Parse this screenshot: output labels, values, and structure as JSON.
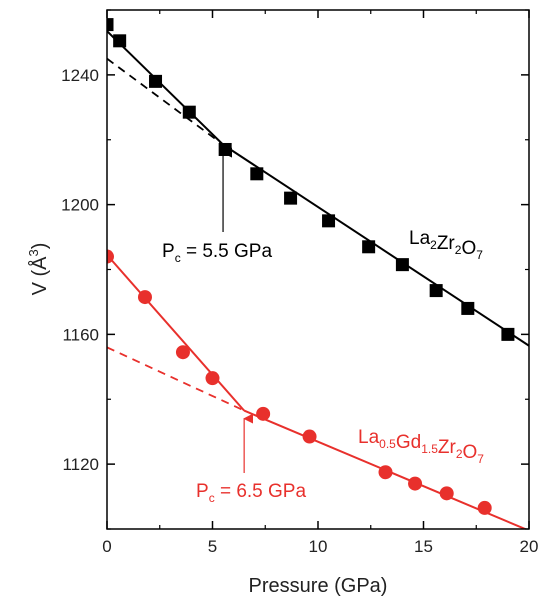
{
  "chart_data": {
    "type": "scatter",
    "xlabel": "Pressure (GPa)",
    "ylabel": "V (Å",
    "ylabel_sup": "3",
    "ylabel_close": ")",
    "xlim": [
      0,
      20
    ],
    "ylim": [
      1100,
      1260
    ],
    "xticks": [
      "0",
      "5",
      "10",
      "15",
      "20"
    ],
    "yticks": [
      "1120",
      "1160",
      "1200",
      "1240"
    ],
    "grid": false,
    "colors": {
      "black": "#000000",
      "red": "#e8302c"
    },
    "series": [
      {
        "name_parts": [
          {
            "text": "La",
            "sub": "2"
          },
          {
            "text": "Zr",
            "sub": "2"
          },
          {
            "text": "O",
            "sub": "7"
          }
        ],
        "color": "#000000",
        "marker": "square",
        "x": [
          0.0,
          0.6,
          2.3,
          3.9,
          5.6,
          7.1,
          8.7,
          10.5,
          12.4,
          14.0,
          15.6,
          17.1,
          19.0
        ],
        "y": [
          1255.5,
          1250.5,
          1238.0,
          1228.5,
          1217.0,
          1209.5,
          1202.0,
          1195.0,
          1187.0,
          1181.5,
          1173.5,
          1168.0,
          1160.0
        ],
        "fit_low": {
          "x": [
            0.0,
            5.5
          ],
          "y": [
            1253.5,
            1218.5
          ]
        },
        "fit_high": {
          "x": [
            5.5,
            20.0
          ],
          "y": [
            1218.5,
            1156.5
          ]
        },
        "extrapolation": {
          "x": [
            0.0,
            5.5
          ],
          "y": [
            1245.0,
            1218.5
          ]
        },
        "pc": {
          "prefix": "P",
          "sub": "c",
          "value": " = 5.5 GPa",
          "x": 5.5
        }
      },
      {
        "name_parts": [
          {
            "text": "La",
            "sub": "0.5"
          },
          {
            "text": "Gd",
            "sub": "1.5"
          },
          {
            "text": "Zr",
            "sub": "2"
          },
          {
            "text": "O",
            "sub": "7"
          }
        ],
        "color": "#e8302c",
        "marker": "circle",
        "x": [
          0.0,
          1.8,
          3.6,
          5.0,
          7.4,
          9.6,
          13.2,
          14.6,
          16.1,
          17.9
        ],
        "y": [
          1184.0,
          1171.5,
          1154.5,
          1146.5,
          1135.5,
          1128.5,
          1117.5,
          1114.0,
          1111.0,
          1106.5
        ],
        "fit_low": {
          "x": [
            0.0,
            6.5
          ],
          "y": [
            1184.5,
            1136.5
          ]
        },
        "fit_high": {
          "x": [
            6.5,
            20.0
          ],
          "y": [
            1136.5,
            1099.5
          ]
        },
        "extrapolation": {
          "x": [
            0.0,
            6.5
          ],
          "y": [
            1156.0,
            1136.5
          ]
        },
        "pc": {
          "prefix": "P",
          "sub": "c",
          "value": " = 6.5 GPa",
          "x": 6.5
        }
      }
    ]
  }
}
